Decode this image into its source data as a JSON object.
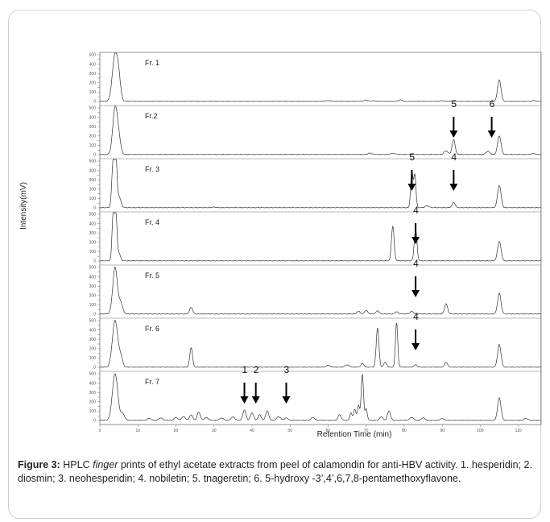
{
  "figure": {
    "y_axis_label": "Intensity(mV)",
    "x_axis_label": "Retention Time (min)",
    "caption": {
      "label": "Figure 3:",
      "text_before_italic": " HPLC ",
      "italic_word": "finger",
      "text_after_italic": " prints of ethyl acetate extracts from peel of calamondin for anti-HBV activity. 1. hesperidin; 2. diosmin; 3. neohesperidin; 4. nobiletin; 5. tnageretin; 6. 5-hydroxy -3’,4’,6,7,8-pentamethoxyflavone."
    }
  },
  "chart_data": {
    "type": "line",
    "x_ticks": [
      "0",
      "10",
      "20",
      "30",
      "40",
      "50",
      "60",
      "70",
      "80",
      "90",
      "100",
      "110"
    ],
    "y_ticks": [
      "0",
      "50",
      "100",
      "150",
      "200",
      "250",
      "300",
      "350",
      "400",
      "450",
      "500"
    ],
    "xlim": [
      0,
      116
    ],
    "ylim": [
      0,
      500
    ],
    "panels": [
      {
        "label": "Fr. 1",
        "peaks": [
          [
            4,
            500,
            0.7
          ],
          [
            5,
            180,
            0.5
          ],
          [
            60,
            8,
            0.6
          ],
          [
            70,
            12,
            0.6
          ],
          [
            72,
            6,
            0.6
          ],
          [
            79,
            14,
            0.5
          ],
          [
            90,
            6,
            0.6
          ],
          [
            105,
            230,
            0.45
          ],
          [
            114,
            8,
            0.5
          ]
        ],
        "annotations": []
      },
      {
        "label": "Fr.2",
        "peaks": [
          [
            4,
            500,
            0.6
          ],
          [
            5,
            150,
            0.5
          ],
          [
            71,
            15,
            0.5
          ],
          [
            77,
            12,
            0.6
          ],
          [
            91,
            40,
            0.5
          ],
          [
            93,
            160,
            0.4
          ],
          [
            102,
            35,
            0.5
          ],
          [
            105,
            200,
            0.45
          ],
          [
            114,
            10,
            0.5
          ]
        ],
        "annotations": [
          {
            "text": "5",
            "x": 93
          },
          {
            "text": "6",
            "x": 103
          }
        ]
      },
      {
        "label": "Fr. 3",
        "peaks": [
          [
            3.5,
            500,
            0.35
          ],
          [
            4.2,
            500,
            0.3
          ],
          [
            5,
            120,
            0.5
          ],
          [
            30,
            6,
            0.5
          ],
          [
            82,
            385,
            0.3
          ],
          [
            82.8,
            350,
            0.3
          ],
          [
            86,
            20,
            0.5
          ],
          [
            93,
            55,
            0.4
          ],
          [
            105,
            240,
            0.45
          ]
        ],
        "annotations": [
          {
            "text": "5",
            "x": 82
          },
          {
            "text": "4",
            "x": 93
          }
        ]
      },
      {
        "label": "Fr. 4",
        "peaks": [
          [
            3.5,
            500,
            0.3
          ],
          [
            4.2,
            500,
            0.3
          ],
          [
            5,
            80,
            0.4
          ],
          [
            77,
            370,
            0.35
          ],
          [
            83,
            340,
            0.35
          ],
          [
            105,
            210,
            0.45
          ]
        ],
        "annotations": [
          {
            "text": "4",
            "x": 83
          }
        ]
      },
      {
        "label": "Fr. 5",
        "peaks": [
          [
            4,
            500,
            0.6
          ],
          [
            5.5,
            120,
            0.5
          ],
          [
            24,
            70,
            0.4
          ],
          [
            68,
            30,
            0.4
          ],
          [
            70,
            40,
            0.4
          ],
          [
            73,
            35,
            0.4
          ],
          [
            78,
            25,
            0.4
          ],
          [
            82,
            30,
            0.4
          ],
          [
            91,
            110,
            0.4
          ],
          [
            105,
            220,
            0.45
          ]
        ],
        "annotations": [
          {
            "text": "4",
            "x": 83
          }
        ]
      },
      {
        "label": "Fr. 6",
        "peaks": [
          [
            4,
            500,
            0.7
          ],
          [
            5.5,
            100,
            0.5
          ],
          [
            24,
            210,
            0.35
          ],
          [
            60,
            20,
            0.5
          ],
          [
            65,
            25,
            0.5
          ],
          [
            69,
            40,
            0.4
          ],
          [
            73,
            420,
            0.35
          ],
          [
            75,
            50,
            0.4
          ],
          [
            78,
            475,
            0.3
          ],
          [
            83,
            25,
            0.4
          ],
          [
            91,
            50,
            0.4
          ],
          [
            105,
            240,
            0.45
          ]
        ],
        "annotations": [
          {
            "text": "4",
            "x": 83
          }
        ]
      },
      {
        "label": "Fr. 7",
        "peaks": [
          [
            4,
            500,
            0.7
          ],
          [
            6,
            70,
            0.5
          ],
          [
            13,
            20,
            0.5
          ],
          [
            16,
            25,
            0.5
          ],
          [
            20,
            30,
            0.5
          ],
          [
            22,
            40,
            0.5
          ],
          [
            24,
            60,
            0.4
          ],
          [
            26,
            90,
            0.4
          ],
          [
            28,
            30,
            0.5
          ],
          [
            32,
            25,
            0.5
          ],
          [
            35,
            35,
            0.5
          ],
          [
            38,
            110,
            0.4
          ],
          [
            40,
            80,
            0.4
          ],
          [
            42,
            60,
            0.4
          ],
          [
            44,
            100,
            0.4
          ],
          [
            47,
            40,
            0.5
          ],
          [
            49,
            25,
            0.5
          ],
          [
            56,
            30,
            0.5
          ],
          [
            63,
            60,
            0.4
          ],
          [
            66,
            80,
            0.3
          ],
          [
            67,
            120,
            0.3
          ],
          [
            68,
            160,
            0.3
          ],
          [
            69,
            495,
            0.3
          ],
          [
            70,
            120,
            0.3
          ],
          [
            74,
            40,
            0.4
          ],
          [
            76,
            100,
            0.4
          ],
          [
            82,
            30,
            0.5
          ],
          [
            85,
            25,
            0.5
          ],
          [
            90,
            20,
            0.5
          ],
          [
            105,
            240,
            0.45
          ],
          [
            112,
            20,
            0.5
          ]
        ],
        "annotations": [
          {
            "text": "1",
            "x": 38
          },
          {
            "text": "2",
            "x": 41
          },
          {
            "text": "3",
            "x": 49
          }
        ]
      }
    ]
  }
}
